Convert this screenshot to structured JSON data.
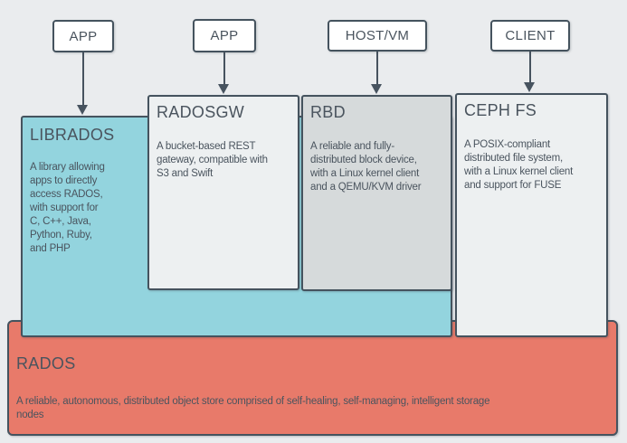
{
  "diagram": {
    "sources": [
      {
        "label": "APP"
      },
      {
        "label": "APP"
      },
      {
        "label": "HOST/VM"
      },
      {
        "label": "CLIENT"
      }
    ],
    "components": {
      "librados": {
        "title": "LIBRADOS",
        "description": "A library allowing\napps to directly\naccess RADOS,\nwith support for\nC, C++, Java,\nPython, Ruby,\nand PHP"
      },
      "radosgw": {
        "title": "RADOSGW",
        "description": "A bucket-based REST\ngateway, compatible with\nS3 and Swift"
      },
      "rbd": {
        "title": "RBD",
        "description": "A reliable and fully-\ndistributed block device,\nwith a Linux kernel client\nand a QEMU/KVM driver"
      },
      "cephfs": {
        "title": "CEPH FS",
        "description": "A POSIX-compliant\ndistributed file system,\nwith a Linux kernel client\nand support for FUSE"
      },
      "rados": {
        "title": "RADOS",
        "description": "A reliable, autonomous, distributed object store comprised of self-healing, self-managing, intelligent storage\nnodes"
      }
    },
    "colors": {
      "background": "#eaecee",
      "border": "#45535e",
      "text": "#4a545e",
      "arrow": "#47535f",
      "librados_fill": "#93d4de",
      "radosgw_fill": "#edf0f1",
      "rbd_fill": "#d6dadb",
      "cephfs_fill": "#edf0f1",
      "rados_fill": "#e87a6a",
      "source_fill": "#ffffff"
    }
  }
}
